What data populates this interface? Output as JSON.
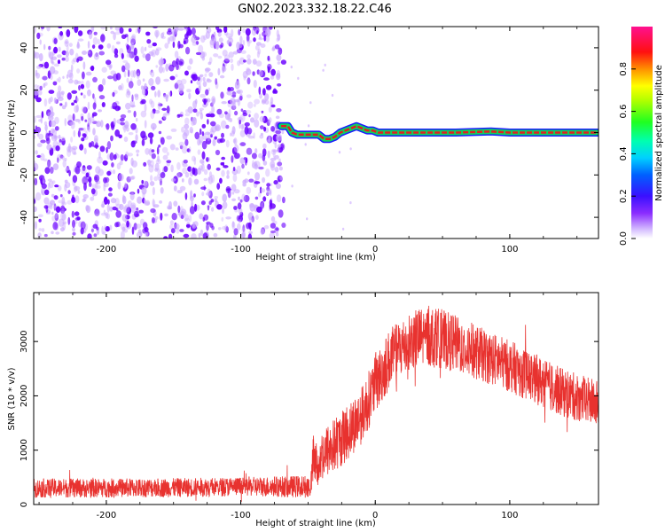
{
  "title": "GN02.2023.332.18.22.C46",
  "colors": {
    "snr_line": "#e8322f",
    "speckle_dark": "#6a00ff",
    "speckle_light": "#c9a6ff",
    "trace_core": "#e02020",
    "trace_edge": "#10d060"
  },
  "chart_data": [
    {
      "type": "heatmap",
      "title": "GN02.2023.332.18.22.C46",
      "xlabel": "Height of straight line (km)",
      "ylabel": "Frequency (Hz)",
      "xlim": [
        -254,
        166
      ],
      "ylim": [
        -50,
        50
      ],
      "x_ticks": [
        -200,
        -100,
        0,
        100
      ],
      "y_ticks": [
        -40,
        -20,
        0,
        20,
        40
      ],
      "noise_region_x": [
        -254,
        -68
      ],
      "trace": {
        "x": [
          -70,
          -65,
          -62,
          -58,
          -50,
          -42,
          -38,
          -34,
          -30,
          -26,
          -22,
          -18,
          -14,
          -10,
          -6,
          -2,
          2,
          6,
          10,
          20,
          40,
          60,
          86,
          100,
          130,
          166
        ],
        "y": [
          3,
          3,
          0,
          -1,
          -1,
          -1,
          -3,
          -3,
          -2,
          0,
          1,
          2,
          3,
          2,
          1,
          1,
          0,
          0,
          0,
          0,
          0,
          0,
          0.5,
          0,
          0,
          0
        ]
      },
      "colorbar": {
        "label": "Normalized spectral amplitude",
        "range": [
          0,
          1
        ],
        "ticks": [
          0.0,
          0.2,
          0.4,
          0.6,
          0.8
        ],
        "tick_labels": [
          "0.0",
          "0.2",
          "0.4",
          "0.6",
          "0.8"
        ]
      }
    },
    {
      "type": "line",
      "xlabel": "Height of straight line (km)",
      "ylabel": "SNR (10 * v/v)",
      "xlim": [
        -254,
        166
      ],
      "ylim": [
        0,
        3900
      ],
      "x_ticks": [
        -200,
        -100,
        0,
        100
      ],
      "y_ticks": [
        0,
        1000,
        2000,
        3000
      ],
      "series": [
        {
          "envelope_x": [
            -254,
            -150,
            -100,
            -48,
            -46,
            -45,
            -40,
            -30,
            -20,
            -10,
            0,
            10,
            20,
            30,
            40,
            50,
            60,
            80,
            100,
            120,
            140,
            166
          ],
          "envelope_y": [
            300,
            310,
            330,
            330,
            850,
            700,
            900,
            1100,
            1350,
            1650,
            2200,
            2650,
            2900,
            3050,
            3100,
            3050,
            2950,
            2750,
            2550,
            2300,
            2050,
            1850
          ],
          "noise_amplitude": [
            110,
            110,
            110,
            130,
            300,
            280,
            300,
            320,
            330,
            330,
            340,
            350,
            350,
            350,
            360,
            340,
            330,
            310,
            300,
            290,
            280,
            270
          ]
        }
      ]
    }
  ]
}
